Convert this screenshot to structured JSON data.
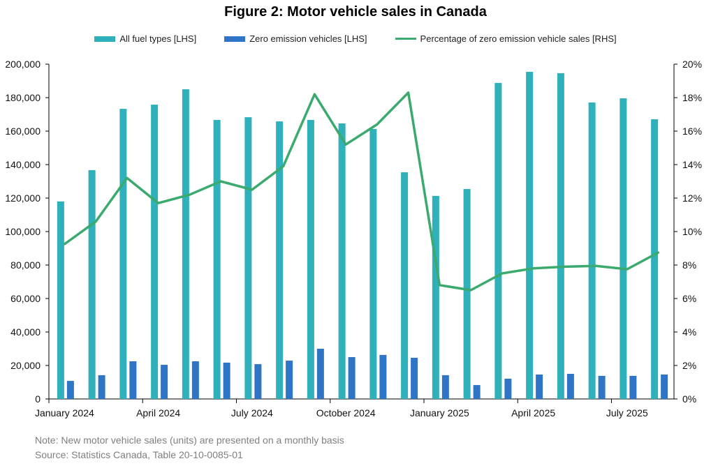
{
  "chart_data": {
    "type": "bar+line",
    "title": "Figure 2: Motor vehicle sales in Canada",
    "categories": [
      "Jan 2024",
      "Feb 2024",
      "Mar 2024",
      "Apr 2024",
      "May 2024",
      "Jun 2024",
      "Jul 2024",
      "Aug 2024",
      "Sep 2024",
      "Oct 2024",
      "Nov 2024",
      "Dec 2024",
      "Jan 2025",
      "Feb 2025",
      "Mar 2025",
      "Apr 2025",
      "May 2025",
      "Jun 2025",
      "Jul 2025",
      "Aug 2025"
    ],
    "x_tick_labels": [
      {
        "category_index": 0,
        "label": "January 2024"
      },
      {
        "category_index": 3,
        "label": "April 2024"
      },
      {
        "category_index": 6,
        "label": "July 2024"
      },
      {
        "category_index": 9,
        "label": "October 2024"
      },
      {
        "category_index": 12,
        "label": "January 2025"
      },
      {
        "category_index": 15,
        "label": "April 2025"
      },
      {
        "category_index": 18,
        "label": "July 2025"
      }
    ],
    "series": [
      {
        "name": "All fuel types [LHS]",
        "type": "bar",
        "axis": "left",
        "color": "#2fb0bb",
        "values": [
          118000,
          136700,
          173300,
          175800,
          185000,
          166700,
          168300,
          165800,
          166700,
          164600,
          161300,
          135400,
          121300,
          125400,
          188800,
          195400,
          194600,
          177100,
          179600,
          167100
        ]
      },
      {
        "name": "Zero emission vehicles [LHS]",
        "type": "bar",
        "axis": "left",
        "color": "#2f75c6",
        "values": [
          10800,
          14200,
          22500,
          20400,
          22500,
          21700,
          20800,
          22900,
          30000,
          25000,
          26300,
          24600,
          14200,
          8300,
          12100,
          14600,
          15000,
          13800,
          13800,
          14600
        ]
      },
      {
        "name": "Percentage of zero emission vehicle sales [RHS]",
        "type": "line",
        "axis": "right",
        "color": "#3aaa6e",
        "values": [
          9.25,
          10.6,
          13.2,
          11.7,
          12.2,
          13.0,
          12.5,
          13.9,
          18.2,
          15.2,
          16.4,
          18.3,
          6.8,
          6.5,
          7.5,
          7.8,
          7.9,
          7.95,
          7.75,
          8.75
        ]
      }
    ],
    "y_left": {
      "range": [
        0,
        200000
      ],
      "ticks": [
        "0",
        "20,000",
        "40,000",
        "60,000",
        "80,000",
        "100,000",
        "120,000",
        "140,000",
        "160,000",
        "180,000",
        "200,000"
      ]
    },
    "y_right": {
      "range": [
        0,
        20
      ],
      "ticks": [
        "0%",
        "2%",
        "4%",
        "6%",
        "8%",
        "10%",
        "12%",
        "14%",
        "16%",
        "18%",
        "20%"
      ]
    },
    "grid": false,
    "legend_position": "top"
  },
  "notes": {
    "note": "Note: New motor vehicle sales (units) are presented on a monthly basis",
    "source": "Source: Statistics Canada, Table 20-10-0085-01"
  }
}
